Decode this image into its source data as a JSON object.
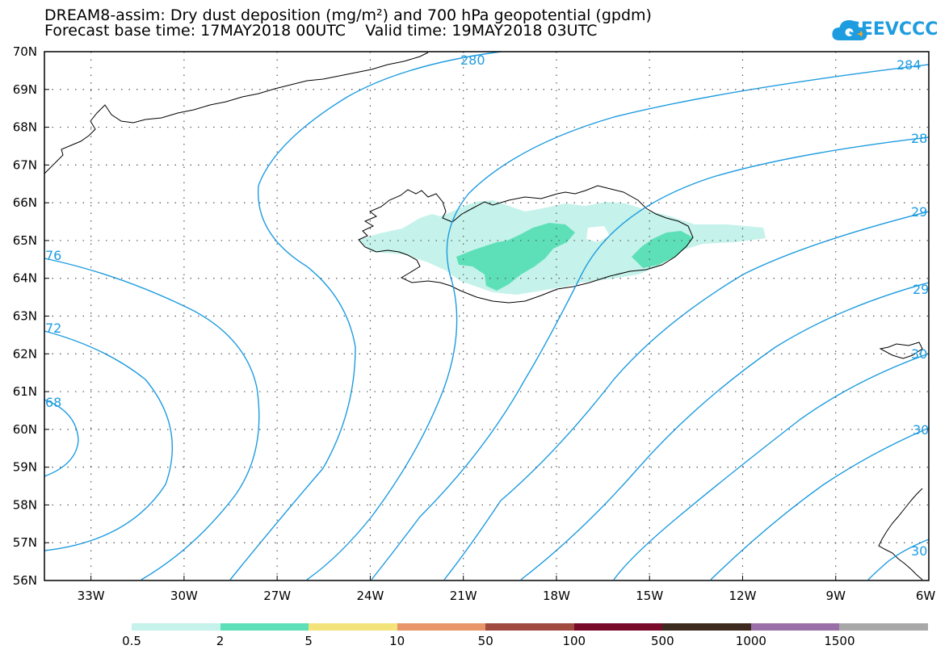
{
  "title": {
    "line1": "DREAM8-assim: Dry dust deposition (mg/m²) and 700 hPa geopotential (gpdm)",
    "line2": "Forecast base time: 17MAY2018 00UTC    Valid time: 19MAY2018 03UTC"
  },
  "logo": {
    "text": "SEEVCCC",
    "icon": "cloud-icon",
    "color": "#1e9ce0"
  },
  "map": {
    "lon_range": [
      -34.5,
      -6
    ],
    "lat_range": [
      56,
      70
    ],
    "lon_ticks": [
      "33W",
      "30W",
      "27W",
      "24W",
      "21W",
      "18W",
      "15W",
      "12W",
      "9W",
      "6W"
    ],
    "lat_ticks": [
      "56N",
      "57N",
      "58N",
      "59N",
      "60N",
      "61N",
      "62N",
      "63N",
      "64N",
      "65N",
      "66N",
      "67N",
      "68N",
      "69N",
      "70N"
    ],
    "grid": "dotted",
    "contour_color": "#1e9ce0",
    "contour_labels": [
      "280",
      "284",
      "28",
      "29",
      "29",
      "30",
      "30",
      "76",
      "72",
      "68",
      "30"
    ],
    "coast_color": "#000000"
  },
  "colorbar": {
    "labels": [
      "0.5",
      "2",
      "5",
      "10",
      "50",
      "100",
      "500",
      "1000",
      "1500"
    ],
    "colors": [
      "#c5f2ea",
      "#5de0b8",
      "#f4e27a",
      "#e8956a",
      "#a04a40",
      "#7a0a2a",
      "#3d2a1e",
      "#9a6fa8",
      "#a8a8a8"
    ]
  }
}
